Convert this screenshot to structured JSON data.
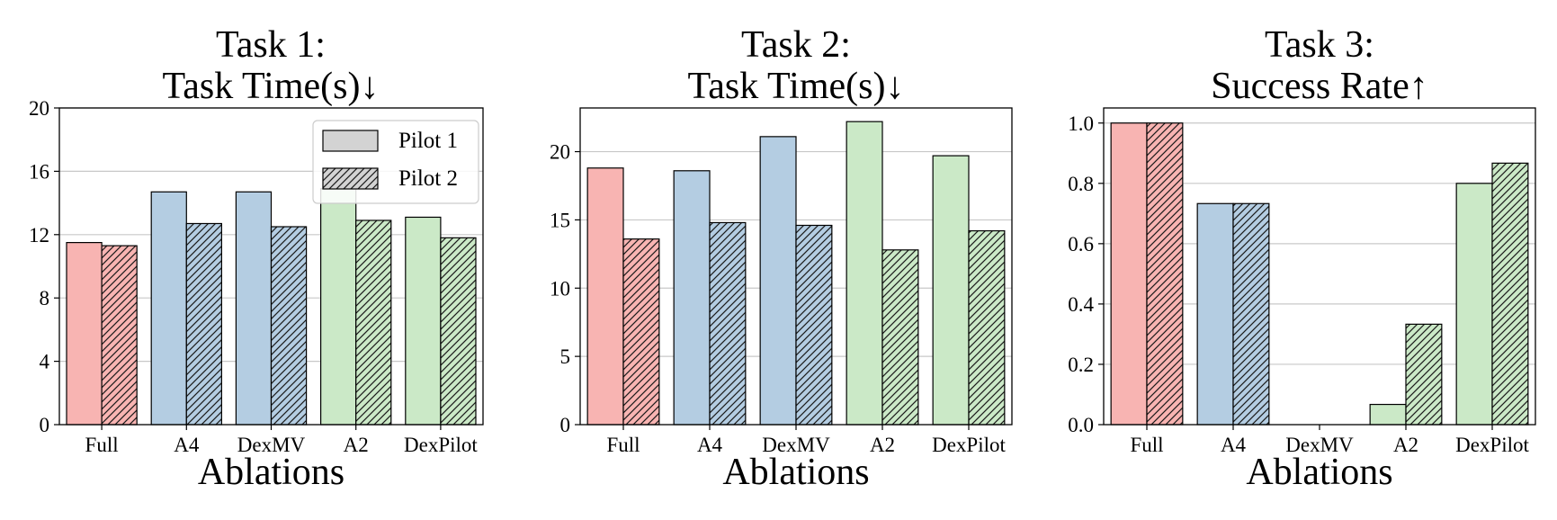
{
  "colors": {
    "Full": "#f8b4b2",
    "A4": "#b4cde2",
    "DexMV": "#b4cde2",
    "A2": "#cbe9c7",
    "DexPilot": "#cbe9c7",
    "legend_fill": "#d3d3d3",
    "grid": "#c8c8c8"
  },
  "legend": {
    "entries": [
      "Pilot 1",
      "Pilot 2"
    ],
    "placement": "top-right of Task 1 panel"
  },
  "chart_data": [
    {
      "type": "bar",
      "title": [
        "Task 1:",
        "Task Time(s)↓"
      ],
      "xlabel": "Ablations",
      "ylabel": "",
      "categories": [
        "Full",
        "A4",
        "DexMV",
        "A2",
        "DexPilot"
      ],
      "series": [
        {
          "name": "Pilot 1",
          "hatch": false,
          "values": [
            11.5,
            14.7,
            14.7,
            14.9,
            13.1
          ]
        },
        {
          "name": "Pilot 2",
          "hatch": true,
          "values": [
            11.3,
            12.7,
            12.5,
            12.9,
            11.8
          ]
        }
      ],
      "ylim": [
        0,
        20
      ],
      "yticks": [
        0,
        4,
        8,
        12,
        16,
        20
      ],
      "ytick_labels": [
        "0",
        "4",
        "8",
        "12",
        "16",
        "20"
      ],
      "grid": true,
      "legend": true
    },
    {
      "type": "bar",
      "title": [
        "Task 2:",
        "Task Time(s)↓"
      ],
      "xlabel": "Ablations",
      "ylabel": "",
      "categories": [
        "Full",
        "A4",
        "DexMV",
        "A2",
        "DexPilot"
      ],
      "series": [
        {
          "name": "Pilot 1",
          "hatch": false,
          "values": [
            18.8,
            18.6,
            21.1,
            22.2,
            19.7
          ]
        },
        {
          "name": "Pilot 2",
          "hatch": true,
          "values": [
            13.6,
            14.8,
            14.6,
            12.8,
            14.2
          ]
        }
      ],
      "ylim": [
        0,
        23.2
      ],
      "yticks": [
        0,
        5,
        10,
        15,
        20
      ],
      "ytick_labels": [
        "0",
        "5",
        "10",
        "15",
        "20"
      ],
      "grid": true,
      "legend": false
    },
    {
      "type": "bar",
      "title": [
        "Task 3:",
        "Success Rate↑"
      ],
      "xlabel": "Ablations",
      "ylabel": "",
      "categories": [
        "Full",
        "A4",
        "DexMV",
        "A2",
        "DexPilot"
      ],
      "series": [
        {
          "name": "Pilot 1",
          "hatch": false,
          "values": [
            1.0,
            0.733,
            0.0,
            0.067,
            0.8
          ]
        },
        {
          "name": "Pilot 2",
          "hatch": true,
          "values": [
            1.0,
            0.733,
            0.0,
            0.333,
            0.867
          ]
        }
      ],
      "ylim": [
        0,
        1.05
      ],
      "yticks": [
        0.0,
        0.2,
        0.4,
        0.6,
        0.8,
        1.0
      ],
      "ytick_labels": [
        "0.0",
        "0.2",
        "0.4",
        "0.6",
        "0.8",
        "1.0"
      ],
      "grid": true,
      "legend": false
    }
  ]
}
